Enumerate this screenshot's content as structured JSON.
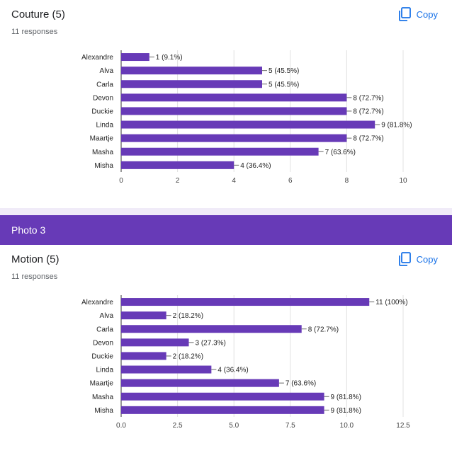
{
  "questions": [
    {
      "title": "Couture (5)",
      "subtitle": "11 responses",
      "copy_label": "Copy"
    },
    {
      "title": "Motion (5)",
      "subtitle": "11 responses",
      "copy_label": "Copy"
    }
  ],
  "section": {
    "title": "Photo 3"
  },
  "colors": {
    "bar": "#673ab7",
    "accent": "#1a73e8",
    "header": "#673ab7",
    "band": "#f0ebf8"
  },
  "chart_data": [
    {
      "type": "bar",
      "orientation": "horizontal",
      "categories": [
        "Alexandre",
        "Alva",
        "Carla",
        "Devon",
        "Duckie",
        "Linda",
        "Maartje",
        "Masha",
        "Misha"
      ],
      "values": [
        1,
        5,
        5,
        8,
        8,
        9,
        8,
        7,
        4
      ],
      "data_labels": [
        "1 (9.1%)",
        "5 (45.5%)",
        "5 (45.5%)",
        "8 (72.7%)",
        "8 (72.7%)",
        "9 (81.8%)",
        "8 (72.7%)",
        "7 (63.6%)",
        "4 (36.4%)"
      ],
      "xlim": [
        0,
        10
      ],
      "ticks": [
        "0",
        "2",
        "4",
        "6",
        "8",
        "10"
      ],
      "grid": true
    },
    {
      "type": "bar",
      "orientation": "horizontal",
      "categories": [
        "Alexandre",
        "Alva",
        "Carla",
        "Devon",
        "Duckie",
        "Linda",
        "Maartje",
        "Masha",
        "Misha"
      ],
      "values": [
        11,
        2,
        8,
        3,
        2,
        4,
        7,
        9,
        9
      ],
      "data_labels": [
        "11 (100%)",
        "2 (18.2%)",
        "8 (72.7%)",
        "3 (27.3%)",
        "2 (18.2%)",
        "4 (36.4%)",
        "7 (63.6%)",
        "9 (81.8%)",
        "9 (81.8%)"
      ],
      "xlim": [
        0,
        12.5
      ],
      "ticks": [
        "0.0",
        "2.5",
        "5.0",
        "7.5",
        "10.0",
        "12.5"
      ],
      "grid": true
    }
  ]
}
